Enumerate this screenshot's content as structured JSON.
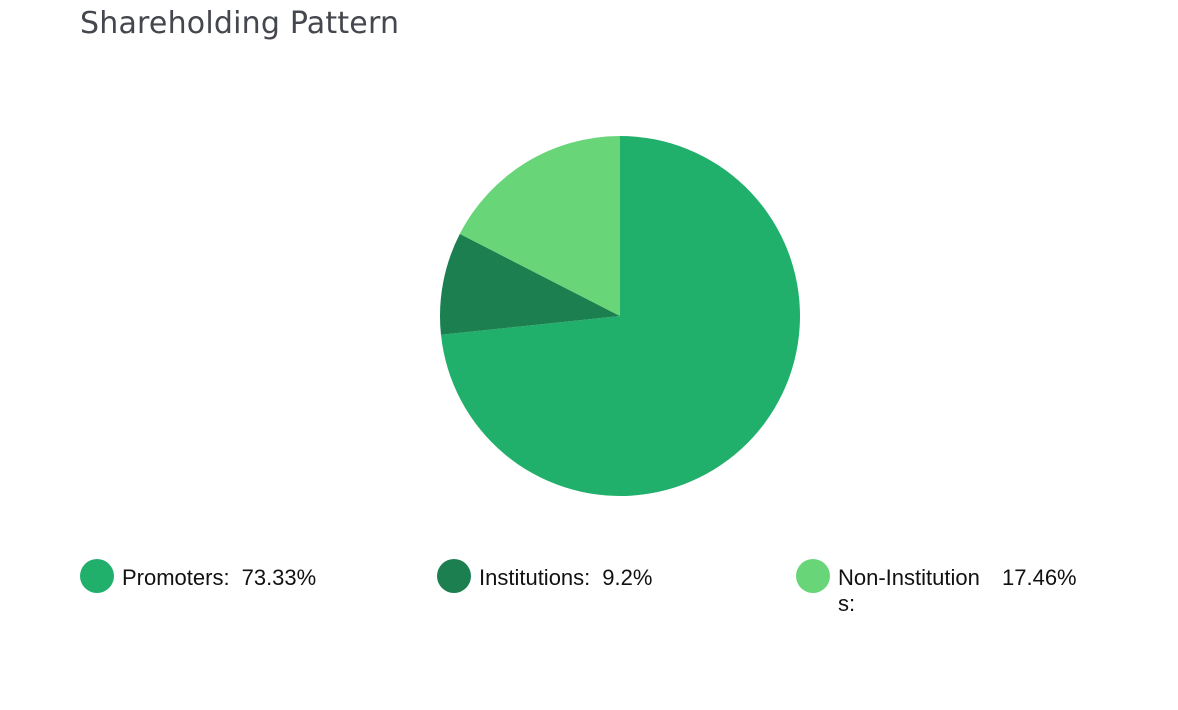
{
  "page": {
    "title": "Shareholding Pattern"
  },
  "chart_data": {
    "type": "pie",
    "title": "Shareholding Pattern",
    "slices": [
      {
        "name": "Promoters:",
        "value": 73.33,
        "display": "73.33%",
        "color": "#21b06c"
      },
      {
        "name": "Institutions:",
        "value": 9.2,
        "display": "9.2%",
        "color": "#1b7f4f"
      },
      {
        "name": "Non-Institutions:",
        "value": 17.46,
        "display": "17.46%",
        "color": "#68d678"
      }
    ],
    "legend_position": "bottom",
    "start_angle": "12 o'clock",
    "direction": "clockwise"
  }
}
